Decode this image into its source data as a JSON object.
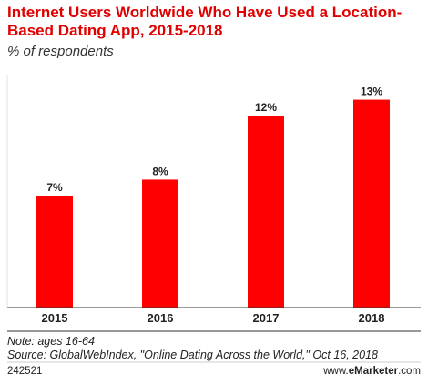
{
  "header": {
    "title": "Internet Users Worldwide Who Have Used a Location-Based Dating App, 2015-2018",
    "subtitle": "% of respondents"
  },
  "chart_data": {
    "type": "bar",
    "categories": [
      "2015",
      "2016",
      "2017",
      "2018"
    ],
    "values": [
      7,
      8,
      12,
      13
    ],
    "value_labels": [
      "7%",
      "8%",
      "12%",
      "13%"
    ],
    "ylim": [
      0,
      14
    ],
    "bar_color": "#ff0000",
    "grid": false,
    "legend": "none"
  },
  "footer": {
    "note": "Note: ages 16-64",
    "source": "Source: GlobalWebIndex, \"Online Dating Across the World,\" Oct 16, 2018",
    "chart_id": "242521",
    "brand_prefix": "www.",
    "brand_name": "eMarketer",
    "brand_suffix": ".com"
  }
}
